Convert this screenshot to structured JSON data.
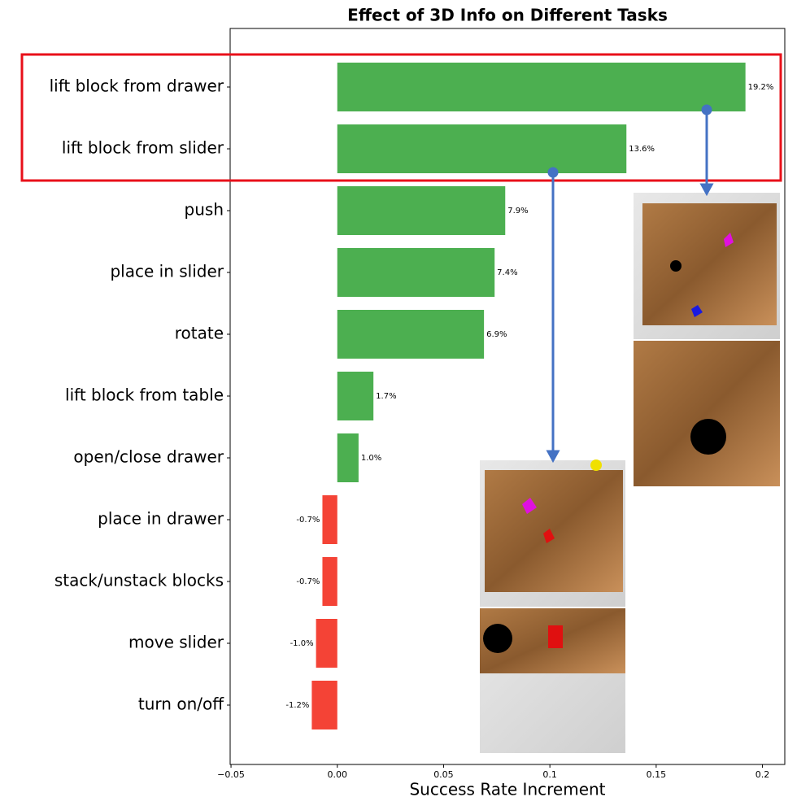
{
  "chart_data": {
    "type": "barh",
    "title": "Effect of 3D Info on Different Tasks",
    "xlabel": "Success Rate Increment",
    "categories": [
      "lift block from drawer",
      "lift block from slider",
      "push",
      "place in slider",
      "rotate",
      "lift block from table",
      "open/close drawer",
      "place in drawer",
      "stack/unstack blocks",
      "move slider",
      "turn on/off"
    ],
    "values": [
      0.192,
      0.136,
      0.079,
      0.074,
      0.069,
      0.017,
      0.01,
      -0.007,
      -0.007,
      -0.01,
      -0.012
    ],
    "value_labels": [
      "19.2%",
      "13.6%",
      "7.9%",
      "7.4%",
      "6.9%",
      "1.7%",
      "1.0%",
      "-0.7%",
      "-0.7%",
      "-1.0%",
      "-1.2%"
    ],
    "colors": [
      "#4caf50",
      "#4caf50",
      "#4caf50",
      "#4caf50",
      "#4caf50",
      "#4caf50",
      "#4caf50",
      "#f44336",
      "#f44336",
      "#f44336",
      "#f44336"
    ],
    "xlim": [
      -0.0504,
      0.2105
    ],
    "xticks": [
      {
        "value": -0.05,
        "label": "−0.05"
      },
      {
        "value": 0,
        "label": "0.00"
      },
      0.05,
      0.1,
      0.15,
      0.2
    ]
  }
}
